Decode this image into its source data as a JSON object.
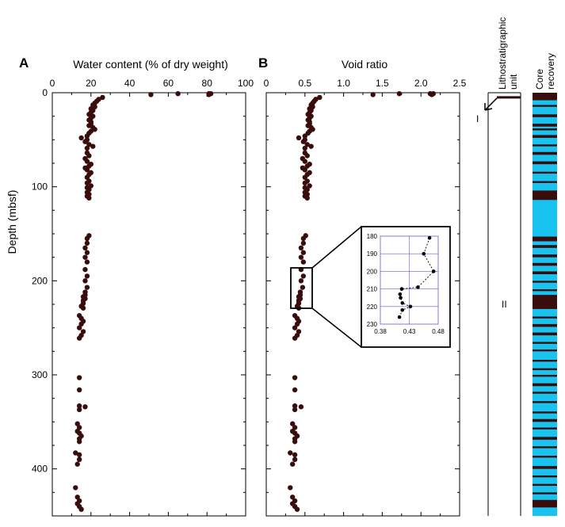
{
  "chart_data": [
    {
      "panel": "A",
      "type": "scatter",
      "xlabel": "Water content (% of dry weight)",
      "ylabel": "Depth (mbsf)",
      "xlim": [
        0,
        100
      ],
      "ylim": [
        450,
        0
      ],
      "xticks": [
        0,
        20,
        40,
        60,
        80,
        100
      ],
      "yticks": [
        0,
        100,
        200,
        300,
        400
      ],
      "color": "#3a0d0d",
      "points": [
        [
          51,
          2
        ],
        [
          65,
          1
        ],
        [
          81,
          1
        ],
        [
          81,
          2
        ],
        [
          82,
          1
        ],
        [
          26,
          5
        ],
        [
          24,
          7
        ],
        [
          23,
          9
        ],
        [
          22,
          11
        ],
        [
          21,
          13
        ],
        [
          22,
          15
        ],
        [
          20,
          17
        ],
        [
          21,
          19
        ],
        [
          20,
          21
        ],
        [
          19,
          23
        ],
        [
          21,
          25
        ],
        [
          20,
          27
        ],
        [
          19,
          29
        ],
        [
          20,
          31
        ],
        [
          20,
          33
        ],
        [
          19,
          35
        ],
        [
          21,
          37
        ],
        [
          22,
          39
        ],
        [
          20,
          41
        ],
        [
          19,
          43
        ],
        [
          18,
          46
        ],
        [
          15,
          48
        ],
        [
          18,
          50
        ],
        [
          17,
          52
        ],
        [
          19,
          55
        ],
        [
          21,
          57
        ],
        [
          18,
          59
        ],
        [
          18,
          64
        ],
        [
          19,
          67
        ],
        [
          17,
          70
        ],
        [
          18,
          73
        ],
        [
          20,
          76
        ],
        [
          19,
          78
        ],
        [
          17,
          80
        ],
        [
          18,
          82
        ],
        [
          20,
          85
        ],
        [
          19,
          87
        ],
        [
          18,
          90
        ],
        [
          19,
          94
        ],
        [
          18,
          96
        ],
        [
          20,
          99
        ],
        [
          18,
          101
        ],
        [
          19,
          103
        ],
        [
          18,
          106
        ],
        [
          19,
          108
        ],
        [
          18,
          110
        ],
        [
          19,
          112
        ],
        [
          19,
          152
        ],
        [
          18,
          155
        ],
        [
          18,
          160
        ],
        [
          17,
          165
        ],
        [
          18,
          170
        ],
        [
          17,
          175
        ],
        [
          18,
          180
        ],
        [
          17,
          188
        ],
        [
          18,
          195
        ],
        [
          17,
          200
        ],
        [
          18,
          207
        ],
        [
          17,
          212
        ],
        [
          17,
          215
        ],
        [
          16,
          217
        ],
        [
          17,
          219
        ],
        [
          16,
          221
        ],
        [
          16,
          224
        ],
        [
          15,
          227
        ],
        [
          16,
          229
        ],
        [
          14,
          237
        ],
        [
          15,
          240
        ],
        [
          16,
          243
        ],
        [
          15,
          246
        ],
        [
          14,
          250
        ],
        [
          16,
          254
        ],
        [
          15,
          258
        ],
        [
          14,
          261
        ],
        [
          14,
          303
        ],
        [
          14,
          316
        ],
        [
          14,
          333
        ],
        [
          17,
          334
        ],
        [
          14,
          337
        ],
        [
          13,
          352
        ],
        [
          14,
          356
        ],
        [
          13,
          360
        ],
        [
          14,
          362
        ],
        [
          15,
          365
        ],
        [
          14,
          368
        ],
        [
          14,
          371
        ],
        [
          12,
          383
        ],
        [
          14,
          385
        ],
        [
          14,
          390
        ],
        [
          13,
          395
        ],
        [
          12,
          420
        ],
        [
          13,
          430
        ],
        [
          14,
          434
        ],
        [
          13,
          437
        ],
        [
          14,
          440
        ],
        [
          15,
          443
        ]
      ]
    },
    {
      "panel": "B",
      "type": "scatter",
      "xlabel": "Void ratio",
      "xlim": [
        0,
        2.5
      ],
      "ylim": [
        450,
        0
      ],
      "xticks": [
        "0",
        "0.5",
        "1.0",
        "1.5",
        "2.0",
        "2.5"
      ],
      "color": "#3a0d0d",
      "points": [
        [
          1.38,
          2
        ],
        [
          1.72,
          1
        ],
        [
          2.12,
          1
        ],
        [
          2.14,
          2
        ],
        [
          2.16,
          1
        ],
        [
          0.69,
          5
        ],
        [
          0.64,
          7
        ],
        [
          0.62,
          9
        ],
        [
          0.6,
          11
        ],
        [
          0.58,
          13
        ],
        [
          0.6,
          15
        ],
        [
          0.56,
          17
        ],
        [
          0.58,
          19
        ],
        [
          0.56,
          21
        ],
        [
          0.54,
          23
        ],
        [
          0.58,
          25
        ],
        [
          0.56,
          27
        ],
        [
          0.54,
          29
        ],
        [
          0.56,
          31
        ],
        [
          0.56,
          33
        ],
        [
          0.54,
          35
        ],
        [
          0.58,
          37
        ],
        [
          0.6,
          39
        ],
        [
          0.56,
          41
        ],
        [
          0.54,
          43
        ],
        [
          0.5,
          46
        ],
        [
          0.42,
          48
        ],
        [
          0.5,
          50
        ],
        [
          0.48,
          52
        ],
        [
          0.53,
          55
        ],
        [
          0.58,
          57
        ],
        [
          0.5,
          59
        ],
        [
          0.5,
          64
        ],
        [
          0.53,
          67
        ],
        [
          0.47,
          70
        ],
        [
          0.5,
          73
        ],
        [
          0.56,
          76
        ],
        [
          0.53,
          78
        ],
        [
          0.47,
          80
        ],
        [
          0.5,
          82
        ],
        [
          0.56,
          85
        ],
        [
          0.53,
          87
        ],
        [
          0.5,
          90
        ],
        [
          0.53,
          94
        ],
        [
          0.5,
          96
        ],
        [
          0.56,
          99
        ],
        [
          0.5,
          101
        ],
        [
          0.53,
          103
        ],
        [
          0.5,
          106
        ],
        [
          0.53,
          108
        ],
        [
          0.5,
          110
        ],
        [
          0.53,
          112
        ],
        [
          0.51,
          152
        ],
        [
          0.48,
          155
        ],
        [
          0.48,
          160
        ],
        [
          0.45,
          165
        ],
        [
          0.48,
          170
        ],
        [
          0.45,
          175
        ],
        [
          0.48,
          180
        ],
        [
          0.45,
          188
        ],
        [
          0.48,
          195
        ],
        [
          0.45,
          200
        ],
        [
          0.47,
          207
        ],
        [
          0.44,
          212
        ],
        [
          0.44,
          215
        ],
        [
          0.42,
          217
        ],
        [
          0.44,
          219
        ],
        [
          0.42,
          221
        ],
        [
          0.42,
          224
        ],
        [
          0.4,
          227
        ],
        [
          0.42,
          229
        ],
        [
          0.37,
          237
        ],
        [
          0.4,
          240
        ],
        [
          0.42,
          243
        ],
        [
          0.4,
          246
        ],
        [
          0.37,
          250
        ],
        [
          0.42,
          254
        ],
        [
          0.4,
          258
        ],
        [
          0.37,
          261
        ],
        [
          0.37,
          303
        ],
        [
          0.37,
          316
        ],
        [
          0.37,
          333
        ],
        [
          0.45,
          334
        ],
        [
          0.37,
          337
        ],
        [
          0.34,
          352
        ],
        [
          0.37,
          356
        ],
        [
          0.34,
          360
        ],
        [
          0.37,
          362
        ],
        [
          0.4,
          365
        ],
        [
          0.37,
          368
        ],
        [
          0.37,
          371
        ],
        [
          0.31,
          383
        ],
        [
          0.37,
          385
        ],
        [
          0.37,
          390
        ],
        [
          0.34,
          395
        ],
        [
          0.31,
          420
        ],
        [
          0.34,
          430
        ],
        [
          0.37,
          434
        ],
        [
          0.34,
          437
        ],
        [
          0.37,
          440
        ],
        [
          0.4,
          443
        ]
      ],
      "inset": {
        "type": "line",
        "xlim": [
          0.38,
          0.48
        ],
        "ylim": [
          230,
          180
        ],
        "xticks": [
          "0.38",
          "0.43",
          "0.48"
        ],
        "yticks": [
          180,
          190,
          200,
          210,
          220,
          230
        ],
        "zoom_depth": [
          186,
          232
        ],
        "points": [
          [
            0.465,
            181
          ],
          [
            0.455,
            190
          ],
          [
            0.472,
            200
          ],
          [
            0.445,
            209
          ],
          [
            0.417,
            210
          ],
          [
            0.414,
            213
          ],
          [
            0.415,
            215
          ],
          [
            0.418,
            218
          ],
          [
            0.432,
            220
          ],
          [
            0.418,
            222
          ],
          [
            0.413,
            226
          ]
        ]
      }
    }
  ],
  "labels": {
    "panel_a": "A",
    "panel_b": "B",
    "litho_header": [
      "Lithostratigraphic",
      "unit"
    ],
    "core_header": [
      "Core",
      "recovery"
    ],
    "unit_i": "I",
    "unit_ii": "II"
  },
  "lithology": {
    "boundary_depth": 5
  },
  "core_recovery": {
    "colors": {
      "recovered": "#3a0d0d",
      "gap": "#19c3f0"
    },
    "intervals": [
      [
        0,
        8
      ],
      [
        13,
        15
      ],
      [
        23,
        26
      ],
      [
        33,
        36
      ],
      [
        38,
        40
      ],
      [
        45,
        48
      ],
      [
        55,
        57
      ],
      [
        63,
        66
      ],
      [
        73,
        76
      ],
      [
        84,
        86
      ],
      [
        94,
        96
      ],
      [
        104,
        114
      ],
      [
        153,
        158
      ],
      [
        162,
        165
      ],
      [
        172,
        175
      ],
      [
        181,
        184
      ],
      [
        190,
        193
      ],
      [
        200,
        202
      ],
      [
        209,
        211
      ],
      [
        215,
        230
      ],
      [
        238,
        240
      ],
      [
        246,
        249
      ],
      [
        255,
        258
      ],
      [
        265,
        267
      ],
      [
        273,
        275
      ],
      [
        284,
        286
      ],
      [
        293,
        295
      ],
      [
        300,
        302
      ],
      [
        309,
        312
      ],
      [
        318,
        320
      ],
      [
        328,
        330
      ],
      [
        339,
        341
      ],
      [
        347,
        350
      ],
      [
        356,
        358
      ],
      [
        366,
        369
      ],
      [
        376,
        378
      ],
      [
        386,
        388
      ],
      [
        397,
        400
      ],
      [
        407,
        409
      ],
      [
        416,
        418
      ],
      [
        425,
        427
      ],
      [
        433,
        441
      ]
    ]
  }
}
